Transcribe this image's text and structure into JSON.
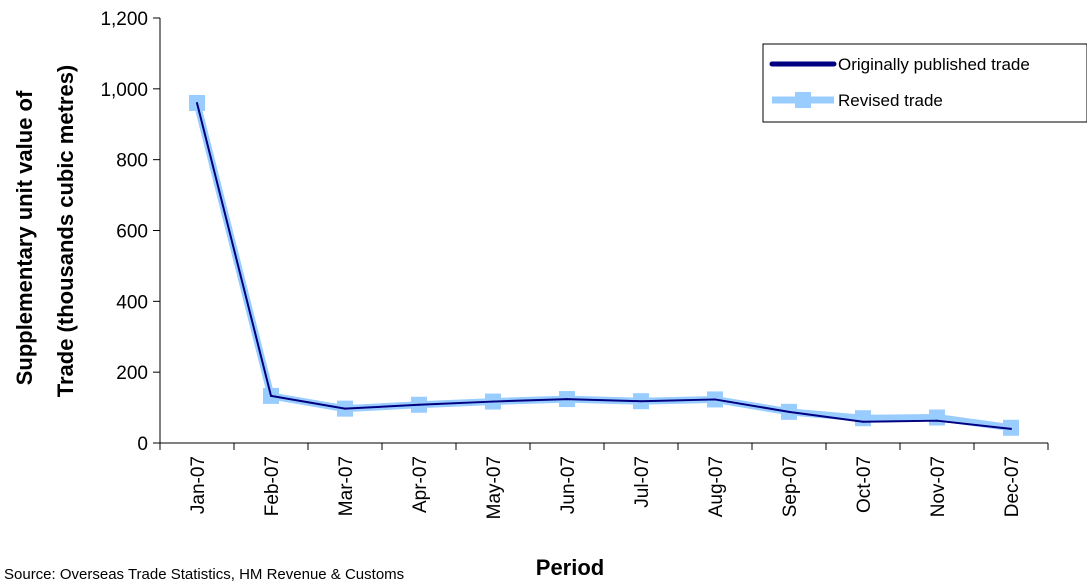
{
  "chart_data": {
    "type": "line",
    "categories": [
      "Jan-07",
      "Feb-07",
      "Mar-07",
      "Apr-07",
      "May-07",
      "Jun-07",
      "Jul-07",
      "Aug-07",
      "Sep-07",
      "Oct-07",
      "Nov-07",
      "Dec-07"
    ],
    "series": [
      {
        "name": "Originally published trade",
        "color": "#000080",
        "values": [
          960,
          133,
          97,
          108,
          117,
          124,
          118,
          123,
          88,
          60,
          63,
          40
        ]
      },
      {
        "name": "Revised trade",
        "color": "#99ccff",
        "values": [
          960,
          133,
          97,
          108,
          117,
          124,
          118,
          123,
          88,
          70,
          72,
          43
        ]
      }
    ],
    "xlabel": "Period",
    "ylabel_lines": [
      "Supplementary unit value of",
      "Trade   (thousands cubic metres)"
    ],
    "ylim": [
      0,
      1200
    ],
    "yticks": [
      0,
      200,
      400,
      600,
      800,
      1000,
      1200
    ],
    "ytick_labels": [
      "0",
      "200",
      "400",
      "600",
      "800",
      "1,000",
      "1,200"
    ],
    "grid": false,
    "legend_position": "top-right",
    "source": "Source: Overseas Trade Statistics, HM Revenue & Customs"
  }
}
